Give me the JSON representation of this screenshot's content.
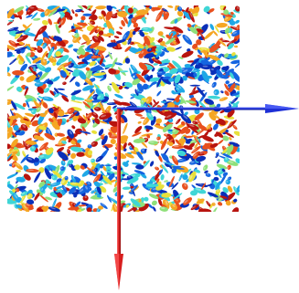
{
  "scene": {
    "background_color": "#ffffff",
    "colormap": [
      "#0a2fb8",
      "#1565e0",
      "#1fa8e6",
      "#3fd6d6",
      "#8fe07a",
      "#e8e03a",
      "#f5a623",
      "#e8501e",
      "#b8140f"
    ],
    "axes": [
      {
        "name": "x-axis-arrow",
        "color": "#1d2fd6"
      },
      {
        "name": "y-axis-arrow",
        "color": "#d81e1e"
      }
    ]
  }
}
